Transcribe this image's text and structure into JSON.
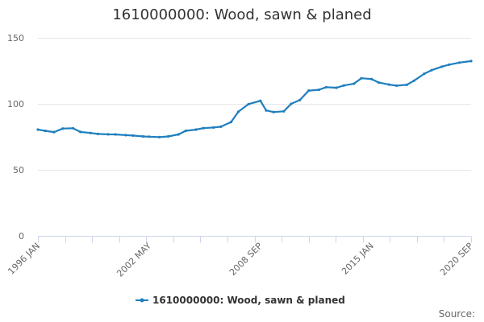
{
  "credits": "Source:",
  "colors": {
    "series": "#1f7fbf",
    "grid": "#e6e6e6",
    "axis": "#ccd6eb",
    "text": "#666666"
  },
  "chart_data": {
    "type": "line",
    "title": "1610000000: Wood, sawn & planed",
    "xlabel": "",
    "ylabel": "",
    "grid": true,
    "legend_position": "bottom-center",
    "x_range": [
      "1996-01",
      "2020-09"
    ],
    "ylim": [
      0,
      150
    ],
    "y_ticks": [
      0,
      50,
      100,
      150
    ],
    "x_tick_labels": [
      "1996 JAN",
      "2002 MAY",
      "2008 SEP",
      "2015 JAN",
      "2020 SEP"
    ],
    "x_tick_dates": [
      "1996-01",
      "2002-05",
      "2008-09",
      "2015-01",
      "2020-09"
    ],
    "series": [
      {
        "name": "1610000000: Wood, sawn & planed",
        "points": [
          [
            "1996-01",
            80.5
          ],
          [
            "1996-06",
            79.6
          ],
          [
            "1996-12",
            78.6
          ],
          [
            "1997-06",
            81.3
          ],
          [
            "1998-01",
            81.5
          ],
          [
            "1998-06",
            78.7
          ],
          [
            "1999-01",
            77.9
          ],
          [
            "1999-06",
            77.2
          ],
          [
            "2000-01",
            76.9
          ],
          [
            "2000-06",
            76.8
          ],
          [
            "2001-01",
            76.3
          ],
          [
            "2001-06",
            76.0
          ],
          [
            "2002-01",
            75.3
          ],
          [
            "2002-05",
            75.1
          ],
          [
            "2002-12",
            74.8
          ],
          [
            "2003-06",
            75.3
          ],
          [
            "2004-01",
            76.8
          ],
          [
            "2004-06",
            79.6
          ],
          [
            "2005-01",
            80.5
          ],
          [
            "2005-06",
            81.6
          ],
          [
            "2006-01",
            82.1
          ],
          [
            "2006-06",
            82.7
          ],
          [
            "2007-01",
            86.2
          ],
          [
            "2007-06",
            94.0
          ],
          [
            "2008-01",
            99.8
          ],
          [
            "2008-09",
            102.3
          ],
          [
            "2009-01",
            95.0
          ],
          [
            "2009-06",
            93.8
          ],
          [
            "2010-01",
            94.3
          ],
          [
            "2010-06",
            100.0
          ],
          [
            "2010-12",
            102.9
          ],
          [
            "2011-06",
            110.0
          ],
          [
            "2012-01",
            110.7
          ],
          [
            "2012-06",
            112.6
          ],
          [
            "2013-01",
            112.2
          ],
          [
            "2013-06",
            113.9
          ],
          [
            "2014-01",
            115.3
          ],
          [
            "2014-06",
            119.4
          ],
          [
            "2015-01",
            118.8
          ],
          [
            "2015-06",
            116.1
          ],
          [
            "2016-01",
            114.6
          ],
          [
            "2016-06",
            113.8
          ],
          [
            "2017-01",
            114.4
          ],
          [
            "2017-06",
            117.5
          ],
          [
            "2018-01",
            122.8
          ],
          [
            "2018-06",
            125.5
          ],
          [
            "2019-01",
            128.2
          ],
          [
            "2019-06",
            129.7
          ],
          [
            "2020-01",
            131.2
          ],
          [
            "2020-09",
            132.4
          ]
        ]
      }
    ]
  }
}
